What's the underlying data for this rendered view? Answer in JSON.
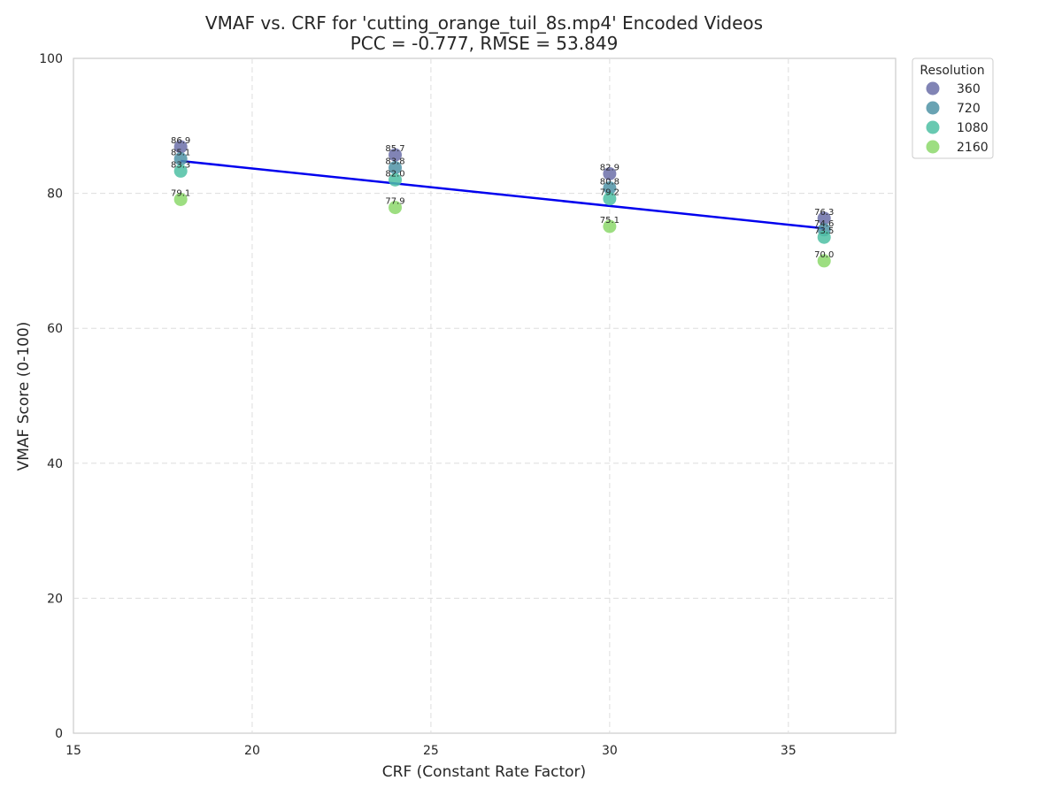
{
  "chart_data": {
    "type": "scatter",
    "title": "VMAF vs. CRF for 'cutting_orange_tuil_8s.mp4' Encoded Videos",
    "subtitle": "PCC = -0.777, RMSE = 53.849",
    "xlabel": "CRF (Constant Rate Factor)",
    "ylabel": "VMAF Score (0-100)",
    "xlim": [
      15,
      38
    ],
    "ylim": [
      0,
      100
    ],
    "xticks": [
      15,
      20,
      25,
      30,
      35
    ],
    "yticks": [
      0,
      20,
      40,
      60,
      80,
      100
    ],
    "grid": true,
    "legend": {
      "title": "Resolution",
      "placement": "outside-top-right"
    },
    "series": [
      {
        "name": "360",
        "color": "#6b6ea8",
        "x": [
          18,
          24,
          30,
          36
        ],
        "y": [
          86.9,
          85.7,
          82.9,
          76.3
        ],
        "labels": [
          "86.9",
          "85.7",
          "82.9",
          "76.3"
        ]
      },
      {
        "name": "720",
        "color": "#4f93a6",
        "x": [
          18,
          24,
          30,
          36
        ],
        "y": [
          85.1,
          83.8,
          80.8,
          74.6
        ],
        "labels": [
          "85.1",
          "83.8",
          "80.8",
          "74.6"
        ]
      },
      {
        "name": "1080",
        "color": "#4dbfa3",
        "x": [
          18,
          24,
          30,
          36
        ],
        "y": [
          83.3,
          82.0,
          79.2,
          73.5
        ],
        "labels": [
          "83.3",
          "82.0",
          "79.2",
          "73.5"
        ]
      },
      {
        "name": "2160",
        "color": "#8cd86b",
        "x": [
          18,
          24,
          30,
          36
        ],
        "y": [
          79.1,
          77.9,
          75.1,
          70.0
        ],
        "labels": [
          "79.1",
          "77.9",
          "75.1",
          "70.0"
        ]
      }
    ],
    "trendline": {
      "color": "#0000ee",
      "x": [
        18,
        36
      ],
      "y": [
        84.8,
        74.8
      ]
    }
  }
}
